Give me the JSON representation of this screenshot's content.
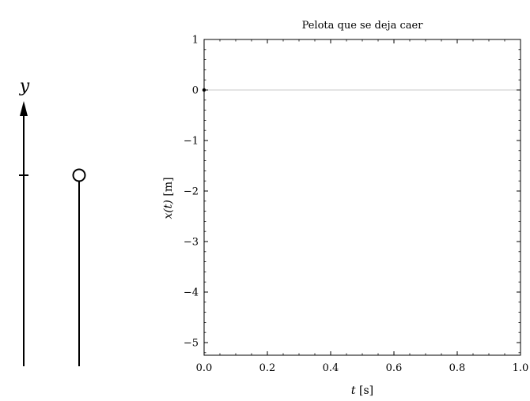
{
  "diagram": {
    "axis_symbol": "y"
  },
  "chart_data": {
    "type": "line",
    "title": "Pelota que se deja caer",
    "xlabel_var": "t",
    "xlabel_unit": " [s]",
    "ylabel_var": "x(t)",
    "ylabel_unit": " [m]",
    "xlim": [
      0.0,
      1.0
    ],
    "ylim": [
      -5.25,
      1.0
    ],
    "x_ticks": [
      0.0,
      0.2,
      0.4,
      0.6,
      0.8,
      1.0
    ],
    "x_tick_labels": [
      "0.0",
      "0.2",
      "0.4",
      "0.6",
      "0.8",
      "1.0"
    ],
    "y_ticks": [
      1,
      0,
      -1,
      -2,
      -3,
      -4,
      -5
    ],
    "y_tick_labels": [
      "1",
      "0",
      "−1",
      "−2",
      "−3",
      "−4",
      "−5"
    ],
    "reference_line_y": 0,
    "series": [
      {
        "x": [
          0.0
        ],
        "y": [
          0.0
        ]
      }
    ],
    "grid": false,
    "colors": {
      "axes": "#000000",
      "reference_line": "#c8c8c8"
    }
  }
}
